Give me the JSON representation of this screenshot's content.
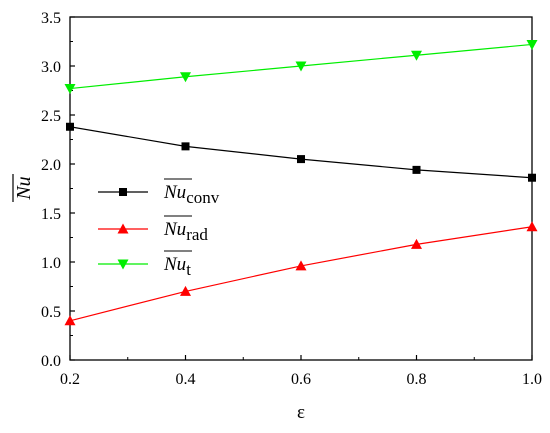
{
  "chart_data": {
    "type": "line",
    "xlabel": "ε",
    "ylabel": "Nu",
    "xlim": [
      0.2,
      1.0
    ],
    "ylim": [
      0.0,
      3.5
    ],
    "xticks": [
      "0.2",
      "0.4",
      "0.6",
      "0.8",
      "1.0"
    ],
    "yticks": [
      "0.0",
      "0.5",
      "1.0",
      "1.5",
      "2.0",
      "2.5",
      "3.0",
      "3.5"
    ],
    "x": [
      0.2,
      0.4,
      0.6,
      0.8,
      1.0
    ],
    "legend_placement": "center-left",
    "series": [
      {
        "id": "conv",
        "name_main": "Nu",
        "name_sub": "conv",
        "marker": "square",
        "color": "#000000",
        "values": [
          2.38,
          2.18,
          2.05,
          1.94,
          1.86
        ]
      },
      {
        "id": "rad",
        "name_main": "Nu",
        "name_sub": "rad",
        "marker": "triangle-up",
        "color": "#ff0000",
        "values": [
          0.4,
          0.7,
          0.96,
          1.18,
          1.36
        ]
      },
      {
        "id": "t",
        "name_main": "Nu",
        "name_sub": "t",
        "marker": "triangle-down",
        "color": "#00ee00",
        "values": [
          2.77,
          2.89,
          3.0,
          3.11,
          3.22
        ]
      }
    ]
  }
}
